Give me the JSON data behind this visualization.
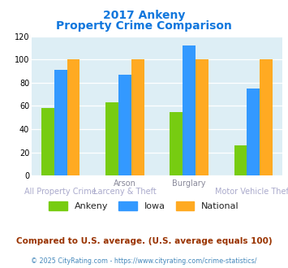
{
  "title_line1": "2017 Ankeny",
  "title_line2": "Property Crime Comparison",
  "x_labels_top": [
    "",
    "Arson",
    "Burglary",
    ""
  ],
  "x_labels_bottom": [
    "All Property Crime",
    "Larceny & Theft",
    "",
    "Motor Vehicle Theft"
  ],
  "ankeny": [
    58,
    63,
    55,
    26
  ],
  "iowa": [
    91,
    87,
    112,
    75
  ],
  "national": [
    100,
    100,
    100,
    100
  ],
  "ankeny_color": "#77cc11",
  "iowa_color": "#3399ff",
  "national_color": "#ffaa22",
  "ylim": [
    0,
    120
  ],
  "yticks": [
    0,
    20,
    40,
    60,
    80,
    100,
    120
  ],
  "bg_color": "#ddeef5",
  "fig_bg": "#ffffff",
  "title_color": "#1177dd",
  "footnote": "Compared to U.S. average. (U.S. average equals 100)",
  "footnote2": "© 2025 CityRating.com - https://www.cityrating.com/crime-statistics/",
  "footnote_color": "#993300",
  "footnote2_color": "#4488bb",
  "xlabel_top_color": "#888899",
  "xlabel_bot_color": "#aaaacc",
  "legend_labels": [
    "Ankeny",
    "Iowa",
    "National"
  ]
}
